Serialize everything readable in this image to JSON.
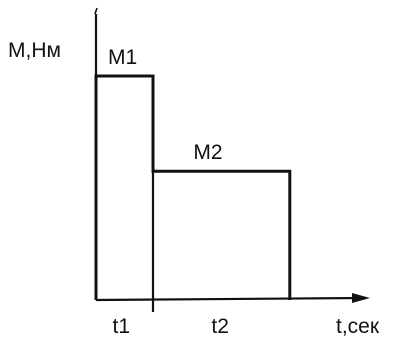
{
  "chart_data": {
    "type": "line",
    "step": true,
    "ylabel": "М,Нм",
    "xlabel": "t,сек",
    "segments": [
      {
        "label": "M1",
        "duration_label": "t1",
        "x": [
          0,
          1
        ],
        "y": 2
      },
      {
        "label": "M2",
        "duration_label": "t2",
        "x": [
          1,
          3.4
        ],
        "y": 1.15
      }
    ],
    "x_tick_marks": [
      1
    ],
    "grid": false,
    "legend": "none"
  }
}
